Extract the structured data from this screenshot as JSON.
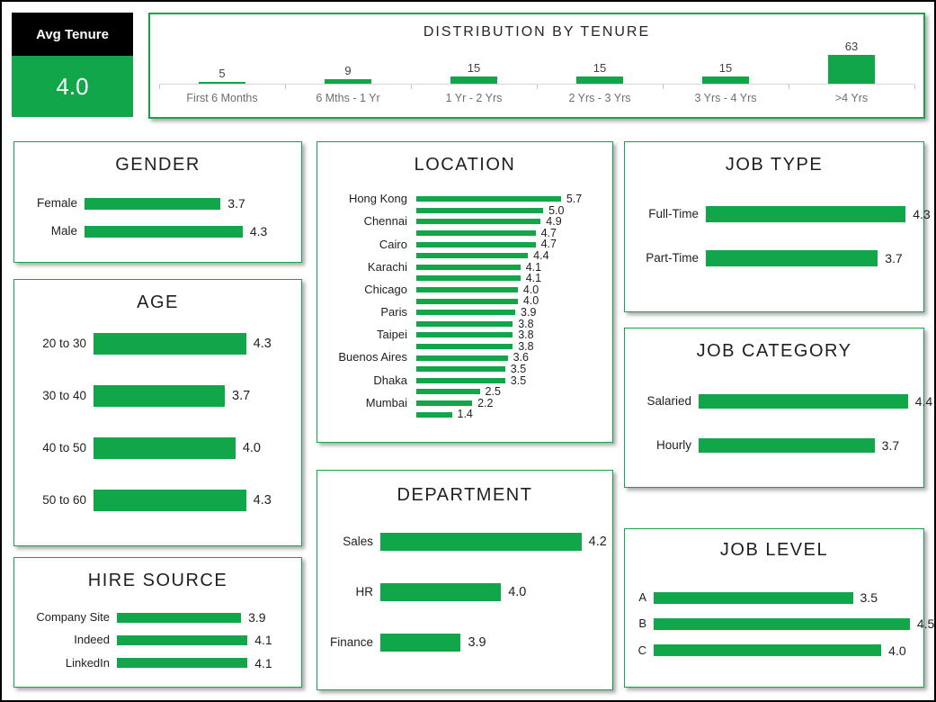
{
  "kpi": {
    "title": "Avg Tenure",
    "value": "4.0"
  },
  "colors": {
    "accent_green": "#12A64A",
    "kpi_header_bg": "#000000",
    "kpi_value_bg": "#12A64A",
    "panel_border": "#12A64A",
    "axis_line": "#D6D6D6",
    "axis_label_gray": "#6E6E6E",
    "value_label_dark": "#404040",
    "page_border": "#000000"
  },
  "chart_data": [
    {
      "id": "distribution",
      "type": "bar",
      "orientation": "vertical",
      "title": "DISTRIBUTION BY TENURE",
      "categories": [
        "First 6 Months",
        "6 Mths - 1 Yr",
        "1 Yr - 2 Yrs",
        "2 Yrs - 3 Yrs",
        "3 Yrs - 4 Yrs",
        ">4 Yrs"
      ],
      "values": [
        5,
        9,
        15,
        15,
        15,
        63
      ],
      "ylim": [
        0,
        70
      ],
      "grid": false,
      "value_labels": true
    },
    {
      "id": "gender",
      "type": "bar",
      "orientation": "horizontal",
      "title": "GENDER",
      "categories": [
        "Female",
        "Male"
      ],
      "values": [
        3.7,
        4.3
      ],
      "xlim": [
        0,
        5.6
      ],
      "value_labels": true
    },
    {
      "id": "age",
      "type": "bar",
      "orientation": "horizontal",
      "title": "AGE",
      "categories": [
        "20 to 30",
        "30 to 40",
        "40 to 50",
        "50 to 60"
      ],
      "values": [
        4.3,
        3.7,
        4.0,
        4.3
      ],
      "xlim": [
        0,
        5.55
      ],
      "value_labels": true
    },
    {
      "id": "hire_source",
      "type": "bar",
      "orientation": "horizontal",
      "title": "HIRE SOURCE",
      "categories": [
        "Company Site",
        "Indeed",
        "LinkedIn"
      ],
      "values": [
        3.9,
        4.1,
        4.1
      ],
      "xlim": [
        0,
        5.45
      ],
      "value_labels": true
    },
    {
      "id": "location",
      "type": "bar",
      "orientation": "horizontal",
      "title": "LOCATION",
      "categories": [
        "Hong Kong",
        "",
        "Chennai",
        "",
        "Cairo",
        "",
        "Karachi",
        "",
        "Chicago",
        "",
        "Paris",
        "",
        "Taipei",
        "",
        "Buenos Aires",
        "",
        "Dhaka",
        "",
        "Mumbai",
        ""
      ],
      "values": [
        5.7,
        5.0,
        4.9,
        4.7,
        4.7,
        4.4,
        4.1,
        4.1,
        4.0,
        4.0,
        3.9,
        3.8,
        3.8,
        3.8,
        3.6,
        3.5,
        3.5,
        2.5,
        2.2,
        1.4
      ],
      "xlim": [
        0,
        7.3
      ],
      "value_labels": true
    },
    {
      "id": "department",
      "type": "bar",
      "orientation": "horizontal",
      "title": "DEPARTMENT",
      "categories": [
        "Sales",
        "HR",
        "Finance"
      ],
      "values": [
        4.2,
        4.0,
        3.9
      ],
      "xlim": [
        3.7,
        4.25
      ],
      "value_labels": true
    },
    {
      "id": "job_type",
      "type": "bar",
      "orientation": "horizontal",
      "title": "JOB TYPE",
      "categories": [
        "Full-Time",
        "Part-Time"
      ],
      "values": [
        4.3,
        3.7
      ],
      "xlim": [
        0,
        4.45
      ],
      "value_labels": true
    },
    {
      "id": "job_category",
      "type": "bar",
      "orientation": "horizontal",
      "title": "JOB CATEGORY",
      "categories": [
        "Salaried",
        "Hourly"
      ],
      "values": [
        4.4,
        3.7
      ],
      "xlim": [
        0,
        4.5
      ],
      "value_labels": true
    },
    {
      "id": "job_level",
      "type": "bar",
      "orientation": "horizontal",
      "title": "JOB LEVEL",
      "categories": [
        "A",
        "B",
        "C"
      ],
      "values": [
        3.5,
        4.5,
        4.0
      ],
      "xlim": [
        0,
        4.55
      ],
      "value_labels": true
    }
  ]
}
